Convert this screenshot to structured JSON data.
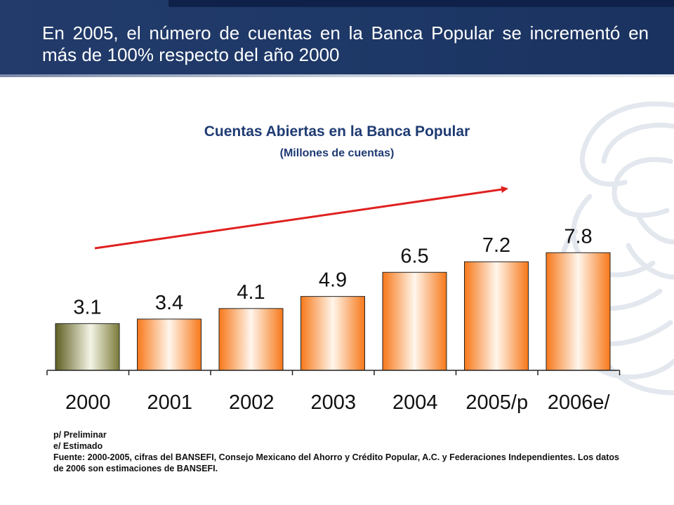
{
  "header": {
    "title": "En 2005, el número de cuentas en la Banca Popular se incrementó en más de 100% respecto del año 2000"
  },
  "colors": {
    "header_bg": "#1d3766",
    "title_color": "#1f3b73",
    "bar_orange": "#f98b2a",
    "bar_olive": "#6d6e2d",
    "arrow_red": "#e02020"
  },
  "chart_data": {
    "type": "bar",
    "title": "Cuentas Abiertas en la Banca Popular",
    "subtitle": "(Millones de cuentas)",
    "categories": [
      "2000",
      "2001",
      "2002",
      "2003",
      "2004",
      "2005/p",
      "2006e/"
    ],
    "values": [
      3.1,
      3.4,
      4.1,
      4.9,
      6.5,
      7.2,
      7.8
    ],
    "data_labels": [
      "3.1",
      "3.4",
      "4.1",
      "4.9",
      "6.5",
      "7.2",
      "7.8"
    ],
    "ylim": [
      0,
      9.3
    ],
    "grid": false,
    "legend": "none",
    "annotations": [
      "red upward trend arrow above bars"
    ]
  },
  "notes": {
    "line1": "p/ Preliminar",
    "line2": "e/ Estimado",
    "source": "Fuente: 2000-2005, cifras del BANSEFI, Consejo Mexicano del Ahorro y Crédito Popular, A.C. y Federaciones Independientes. Los datos de 2006 son estimaciones de BANSEFI."
  }
}
